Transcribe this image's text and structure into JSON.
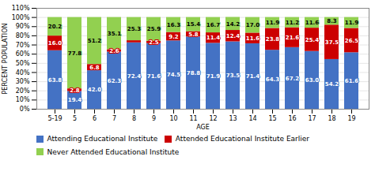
{
  "chart_data": {
    "type": "bar",
    "stacked": true,
    "xlabel": "AGE",
    "ylabel": "PERCENT POPULATION",
    "categories": [
      "5-19",
      "5",
      "6",
      "7",
      "8",
      "9",
      "10",
      "11",
      "12",
      "13",
      "14",
      "15",
      "16",
      "17",
      "18",
      "19"
    ],
    "series": [
      {
        "name": "Attending Educational Institute",
        "color": "#4472C4",
        "values": [
          63.8,
          19.4,
          42.0,
          62.3,
          72.4,
          71.6,
          74.5,
          78.8,
          71.9,
          73.5,
          71.4,
          64.3,
          67.2,
          63.0,
          54.2,
          61.6
        ],
        "value_labels": [
          "63.8",
          "19.4",
          "42.0",
          "62.3",
          "72.4",
          "71.6",
          "74.5",
          "78.8",
          "71.9",
          "73.5",
          "71.4",
          "64.3",
          "67.2",
          "63.0",
          "54.2",
          "61.6"
        ]
      },
      {
        "name": "Attended Educational Institute Earlier",
        "color": "#CC0000",
        "values": [
          16.0,
          2.8,
          6.8,
          2.6,
          2.3,
          2.5,
          9.2,
          5.8,
          11.4,
          12.4,
          11.6,
          23.8,
          21.6,
          25.4,
          37.5,
          26.5
        ],
        "value_labels": [
          "16.0",
          "2.8",
          "6.8",
          "2.6",
          null,
          "2.5",
          "9.2",
          "5.8",
          "11.4",
          "12.4",
          "11.6",
          "23.8",
          "21.6",
          "25.4",
          "37.5",
          "26.5"
        ]
      },
      {
        "name": "Never Attended Educational Institute",
        "color": "#92D050",
        "values": [
          20.2,
          77.8,
          51.2,
          35.1,
          25.3,
          25.9,
          16.3,
          15.4,
          16.7,
          14.2,
          17.0,
          11.9,
          11.2,
          11.6,
          8.3,
          11.9
        ],
        "value_labels": [
          "20.2",
          "77.8",
          "51.2",
          "35.1",
          "25.3",
          "25.9",
          "16.3",
          "15.4",
          "16.7",
          "14.2",
          "17.0",
          "11.9",
          "11.2",
          "11.6",
          "8.3",
          "11.9"
        ]
      }
    ],
    "ylim": [
      0,
      110
    ],
    "yticks": [
      {
        "value": 0,
        "label": "0%"
      },
      {
        "value": 10,
        "label": "10%"
      },
      {
        "value": 20,
        "label": "20%"
      },
      {
        "value": 30,
        "label": "30%"
      },
      {
        "value": 40,
        "label": "40%"
      },
      {
        "value": 50,
        "label": "50%"
      },
      {
        "value": 60,
        "label": "60%"
      },
      {
        "value": 70,
        "label": "70%"
      },
      {
        "value": 80,
        "label": "80%"
      },
      {
        "value": 90,
        "label": "90%"
      },
      {
        "value": 100,
        "label": "100%"
      },
      {
        "value": 110,
        "label": "110%"
      }
    ],
    "grid": true,
    "data_labels": true,
    "legend": "bottom"
  }
}
